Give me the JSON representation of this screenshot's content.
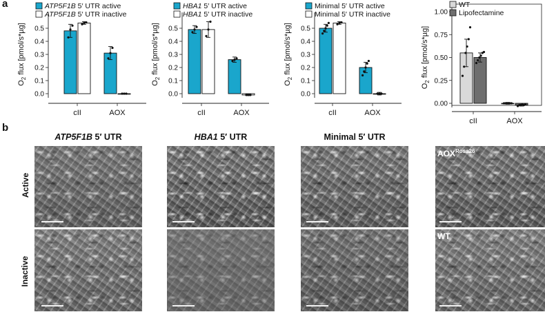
{
  "panel_a_label": "a",
  "panel_b_label": "b",
  "colors": {
    "active": "#1aa6cc",
    "inactive": "#ffffff",
    "wt": "#d9d9d9",
    "lipofectamine": "#6e6e6e"
  },
  "chart_data": [
    {
      "type": "bar",
      "ylabel": "O2 flux [pmol/s*µg]",
      "ylim": [
        0,
        0.6
      ],
      "yticks": [
        "0.0",
        "0.1",
        "0.2",
        "0.3",
        "0.4",
        "0.5"
      ],
      "categories": [
        "cII",
        "AOX"
      ],
      "legend": [
        {
          "italic": "ATP5F1B",
          "rest": " 5′ UTR active"
        },
        {
          "italic": "ATP5F1B",
          "rest": " 5′ UTR inactive"
        }
      ],
      "series": [
        {
          "name": "ATP5F1B 5′ UTR active",
          "values": [
            0.48,
            0.31
          ],
          "errors": [
            0.05,
            0.05
          ],
          "points": [
            [
              0.43,
              0.49,
              0.52
            ],
            [
              0.27,
              0.31,
              0.35
            ]
          ]
        },
        {
          "name": "ATP5F1B 5′ UTR inactive",
          "values": [
            0.54,
            0.0
          ],
          "errors": [
            0.01,
            0.0
          ],
          "points": [
            [
              0.53,
              0.54,
              0.545
            ],
            [
              0.0,
              0.0,
              0.0
            ]
          ]
        }
      ]
    },
    {
      "type": "bar",
      "ylabel": "O2 flux [pmol/s*µg]",
      "ylim": [
        0,
        0.6
      ],
      "yticks": [
        "0.0",
        "0.1",
        "0.2",
        "0.3",
        "0.4",
        "0.5"
      ],
      "categories": [
        "cII",
        "AOX"
      ],
      "legend": [
        {
          "italic": "HBA1",
          "rest": " 5′ UTR active"
        },
        {
          "italic": "HBA1",
          "rest": " 5′ UTR inactive"
        }
      ],
      "series": [
        {
          "name": "HBA1 5′ UTR active",
          "values": [
            0.49,
            0.26
          ],
          "errors": [
            0.03,
            0.02
          ],
          "points": [
            [
              0.47,
              0.49,
              0.51
            ],
            [
              0.25,
              0.26,
              0.27
            ]
          ]
        },
        {
          "name": "HBA1 5′ UTR inactive",
          "values": [
            0.49,
            -0.01
          ],
          "errors": [
            0.06,
            0.005
          ],
          "points": [
            [
              0.44,
              0.49,
              0.55
            ],
            [
              -0.01,
              -0.01,
              -0.01
            ]
          ]
        }
      ]
    },
    {
      "type": "bar",
      "ylabel": "O2 flux [pmol/s*µg]",
      "ylim": [
        0,
        0.6
      ],
      "yticks": [
        "0.0",
        "0.1",
        "0.2",
        "0.3",
        "0.4",
        "0.5"
      ],
      "categories": [
        "cII",
        "AOX"
      ],
      "legend": [
        {
          "italic": "",
          "rest": "Minimal 5′ UTR active"
        },
        {
          "italic": "",
          "rest": "Minimal 5′ UTR inactive"
        }
      ],
      "series": [
        {
          "name": "Minimal 5′ UTR active",
          "values": [
            0.5,
            0.2
          ],
          "errors": [
            0.03,
            0.04
          ],
          "points": [
            [
              0.46,
              0.48,
              0.5,
              0.52,
              0.54
            ],
            [
              0.14,
              0.17,
              0.2,
              0.23,
              0.25
            ]
          ]
        },
        {
          "name": "Minimal 5′ UTR inactive",
          "values": [
            0.54,
            0.0
          ],
          "errors": [
            0.01,
            0.01
          ],
          "points": [
            [
              0.53,
              0.54,
              0.545
            ],
            [
              0.0,
              0.0,
              0.0
            ]
          ]
        }
      ]
    },
    {
      "type": "bar",
      "ylabel": "O2 flux [pmol/s*µg]",
      "ylim": [
        0,
        1.0
      ],
      "yticks": [
        "0.00",
        "0.25",
        "0.50",
        "0.75",
        "1.00"
      ],
      "categories": [
        "cII",
        "AOX"
      ],
      "legend": [
        {
          "italic": "",
          "rest": "WT"
        },
        {
          "italic": "",
          "rest": "Lipofectamine"
        }
      ],
      "series": [
        {
          "name": "WT",
          "values": [
            0.55,
            0.0
          ],
          "errors": [
            0.15,
            0.01
          ],
          "points": [
            [
              0.3,
              0.4,
              0.55,
              0.62,
              0.7,
              0.83
            ],
            [
              0.0,
              0.0,
              0.0,
              0.0,
              0.0,
              0.0
            ]
          ]
        },
        {
          "name": "Lipofectamine",
          "values": [
            0.5,
            -0.02
          ],
          "errors": [
            0.05,
            0.01
          ],
          "points": [
            [
              0.44,
              0.47,
              0.5,
              0.52,
              0.55,
              0.56
            ],
            [
              -0.03,
              -0.02,
              -0.02,
              -0.01,
              -0.02,
              -0.01
            ]
          ]
        }
      ]
    }
  ],
  "panel_b": {
    "columns": [
      {
        "italic": "ATP5F1B",
        "rest": " 5′ UTR"
      },
      {
        "italic": "HBA1",
        "rest": " 5′ UTR"
      },
      {
        "italic": "",
        "rest": "Minimal 5′ UTR"
      },
      {
        "italic": "",
        "rest": ""
      }
    ],
    "rows": [
      "Active",
      "Inactive"
    ],
    "inset_labels": {
      "aox_main": "AOX",
      "aox_sup": "Rosa26",
      "wt": "WT"
    }
  }
}
